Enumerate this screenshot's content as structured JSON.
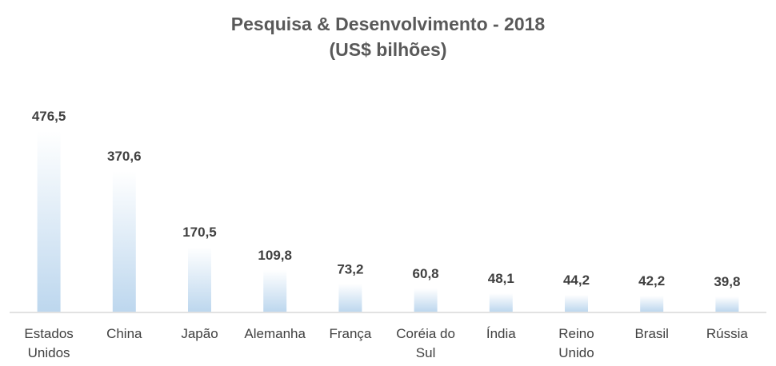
{
  "chart_data": {
    "type": "bar",
    "title": "Pesquisa & Desenvolvimento - 2018",
    "subtitle": "(US$ bilhões)",
    "categories": [
      [
        "Estados",
        "Unidos"
      ],
      [
        "China"
      ],
      [
        "Japão"
      ],
      [
        "Alemanha"
      ],
      [
        "França"
      ],
      [
        "Coréia do",
        "Sul"
      ],
      [
        "Índia"
      ],
      [
        "Reino",
        "Unido"
      ],
      [
        "Brasil"
      ],
      [
        "Rússia"
      ]
    ],
    "values": [
      476.5,
      370.6,
      170.5,
      109.8,
      73.2,
      60.8,
      48.1,
      44.2,
      42.2,
      39.8
    ],
    "value_labels": [
      "476,5",
      "370,6",
      "170,5",
      "109,8",
      "73,2",
      "60,8",
      "48,1",
      "44,2",
      "42,2",
      "39,8"
    ],
    "ylim": [
      0,
      476.5
    ],
    "grid": false,
    "legend": "none",
    "colors": {
      "bar_top": "#ffffff",
      "bar_bottom": "#bdd7ee",
      "axis": "#d9d9d9",
      "text": "#404040",
      "title": "#595959"
    }
  }
}
